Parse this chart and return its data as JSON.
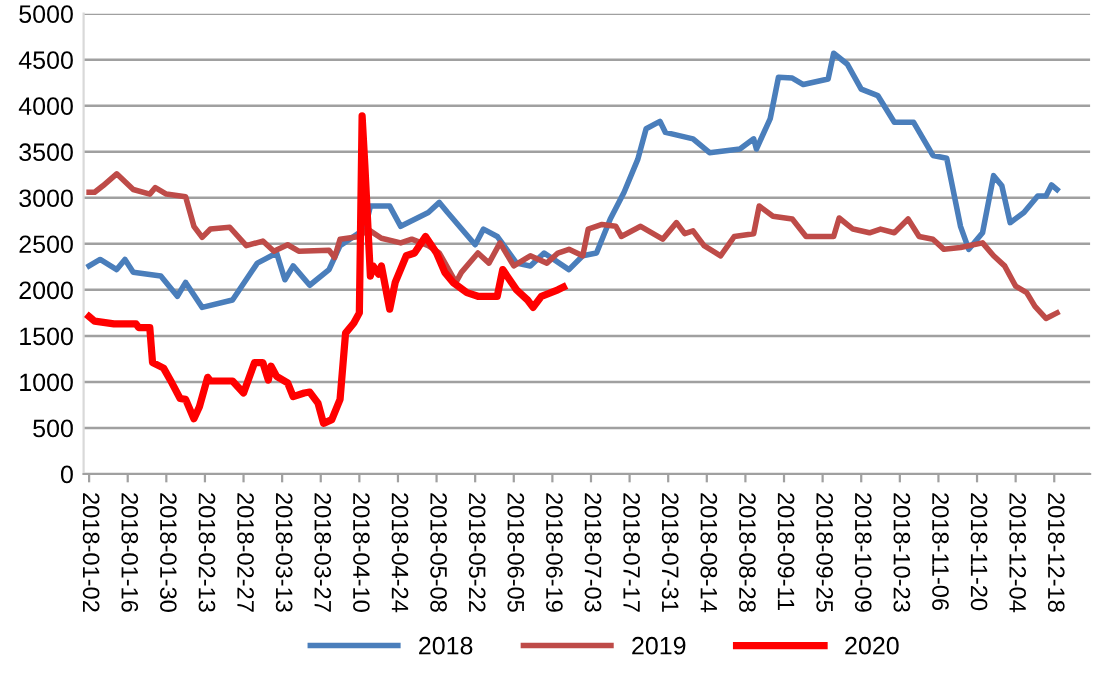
{
  "chart_data": {
    "type": "line",
    "xlim": [
      "2017-12-31",
      "2018-12-31"
    ],
    "ylim": [
      0,
      5000
    ],
    "yticks": [
      0,
      500,
      1000,
      1500,
      2000,
      2500,
      3000,
      3500,
      4000,
      4500,
      5000
    ],
    "xticks": [
      "2018-01-02",
      "2018-01-16",
      "2018-01-30",
      "2018-02-13",
      "2018-02-27",
      "2018-03-13",
      "2018-03-27",
      "2018-04-10",
      "2018-04-24",
      "2018-05-08",
      "2018-05-22",
      "2018-06-05",
      "2018-06-19",
      "2018-07-03",
      "2018-07-17",
      "2018-07-31",
      "2018-08-14",
      "2018-08-28",
      "2018-09-11",
      "2018-09-25",
      "2018-10-09",
      "2018-10-23",
      "2018-11-06",
      "2018-11-20",
      "2018-12-04",
      "2018-12-18"
    ],
    "grid": "y",
    "legend": "bottom",
    "marker": "none",
    "line_style": "solid",
    "series": [
      {
        "name": "2018",
        "color": "#4a7ebb",
        "x": [
          "2018-01-02",
          "2018-01-06",
          "2018-01-12",
          "2018-01-15",
          "2018-01-18",
          "2018-01-28",
          "2018-02-03",
          "2018-02-06",
          "2018-02-12",
          "2018-02-23",
          "2018-03-04",
          "2018-03-11",
          "2018-03-14",
          "2018-03-17",
          "2018-03-23",
          "2018-03-30",
          "2018-04-03",
          "2018-04-12",
          "2018-04-14",
          "2018-04-21",
          "2018-04-25",
          "2018-05-05",
          "2018-05-09",
          "2018-05-12",
          "2018-05-22",
          "2018-05-25",
          "2018-05-30",
          "2018-06-06",
          "2018-06-11",
          "2018-06-16",
          "2018-06-25",
          "2018-06-30",
          "2018-07-05",
          "2018-07-10",
          "2018-07-15",
          "2018-07-20",
          "2018-07-23",
          "2018-07-28",
          "2018-07-30",
          "2018-08-09",
          "2018-08-15",
          "2018-08-26",
          "2018-08-31",
          "2018-09-01",
          "2018-09-06",
          "2018-09-09",
          "2018-09-14",
          "2018-09-18",
          "2018-09-27",
          "2018-09-29",
          "2018-10-04",
          "2018-10-09",
          "2018-10-15",
          "2018-10-21",
          "2018-10-28",
          "2018-11-04",
          "2018-11-09",
          "2018-11-14",
          "2018-11-17",
          "2018-11-22",
          "2018-11-26",
          "2018-11-29",
          "2018-12-02",
          "2018-12-07",
          "2018-12-12",
          "2018-12-15",
          "2018-12-17",
          "2018-12-19"
        ],
        "values": [
          2260,
          2330,
          2220,
          2330,
          2190,
          2150,
          1930,
          2080,
          1810,
          1890,
          2290,
          2400,
          2110,
          2260,
          2050,
          2220,
          2480,
          2660,
          2910,
          2910,
          2690,
          2840,
          2950,
          2840,
          2490,
          2660,
          2580,
          2290,
          2260,
          2400,
          2220,
          2370,
          2400,
          2770,
          3060,
          3420,
          3750,
          3830,
          3710,
          3640,
          3490,
          3530,
          3640,
          3530,
          3860,
          4310,
          4300,
          4230,
          4290,
          4570,
          4450,
          4180,
          4110,
          3820,
          3820,
          3460,
          3430,
          2690,
          2440,
          2620,
          3240,
          3130,
          2730,
          2840,
          3020,
          3020,
          3140,
          3090
        ]
      },
      {
        "name": "2019",
        "color": "#be4b48",
        "x": [
          "2018-01-02",
          "2018-01-04",
          "2018-01-07",
          "2018-01-12",
          "2018-01-18",
          "2018-01-24",
          "2018-01-26",
          "2018-01-30",
          "2018-02-06",
          "2018-02-09",
          "2018-02-12",
          "2018-02-15",
          "2018-02-22",
          "2018-02-28",
          "2018-03-06",
          "2018-03-10",
          "2018-03-15",
          "2018-03-19",
          "2018-03-30",
          "2018-04-01",
          "2018-04-03",
          "2018-04-10",
          "2018-04-13",
          "2018-04-18",
          "2018-04-25",
          "2018-04-29",
          "2018-05-05",
          "2018-05-09",
          "2018-05-15",
          "2018-05-17",
          "2018-05-23",
          "2018-05-27",
          "2018-05-31",
          "2018-06-05",
          "2018-06-11",
          "2018-06-17",
          "2018-06-21",
          "2018-06-25",
          "2018-06-30",
          "2018-07-02",
          "2018-07-07",
          "2018-07-12",
          "2018-07-14",
          "2018-07-21",
          "2018-07-29",
          "2018-08-03",
          "2018-08-06",
          "2018-08-09",
          "2018-08-13",
          "2018-08-19",
          "2018-08-24",
          "2018-08-31",
          "2018-09-02",
          "2018-09-07",
          "2018-09-14",
          "2018-09-19",
          "2018-09-29",
          "2018-10-01",
          "2018-10-06",
          "2018-10-12",
          "2018-10-16",
          "2018-10-21",
          "2018-10-26",
          "2018-10-30",
          "2018-11-04",
          "2018-11-08",
          "2018-11-14",
          "2018-11-22",
          "2018-11-26",
          "2018-11-30",
          "2018-12-04",
          "2018-12-08",
          "2018-12-11",
          "2018-12-15",
          "2018-12-19"
        ],
        "values": [
          3060,
          3060,
          3130,
          3260,
          3090,
          3040,
          3110,
          3040,
          3010,
          2690,
          2570,
          2660,
          2680,
          2480,
          2530,
          2420,
          2490,
          2420,
          2430,
          2350,
          2550,
          2580,
          2660,
          2560,
          2510,
          2550,
          2480,
          2400,
          2080,
          2190,
          2400,
          2290,
          2510,
          2260,
          2370,
          2290,
          2400,
          2440,
          2370,
          2660,
          2710,
          2690,
          2580,
          2690,
          2550,
          2730,
          2610,
          2640,
          2480,
          2370,
          2580,
          2610,
          2910,
          2800,
          2770,
          2580,
          2580,
          2780,
          2660,
          2620,
          2660,
          2620,
          2770,
          2580,
          2550,
          2440,
          2460,
          2510,
          2370,
          2260,
          2040,
          1970,
          1820,
          1690,
          1750
        ]
      },
      {
        "name": "2020",
        "color": "#ff0000",
        "x": [
          "2018-01-02",
          "2018-01-04",
          "2018-01-11",
          "2018-01-19",
          "2018-01-20",
          "2018-01-24",
          "2018-01-25",
          "2018-01-29",
          "2018-02-01",
          "2018-02-04",
          "2018-02-06",
          "2018-02-09",
          "2018-02-11",
          "2018-02-14",
          "2018-02-15",
          "2018-02-23",
          "2018-02-27",
          "2018-03-03",
          "2018-03-06",
          "2018-03-08",
          "2018-03-09",
          "2018-03-11",
          "2018-03-15",
          "2018-03-17",
          "2018-03-21",
          "2018-03-23",
          "2018-03-26",
          "2018-03-28",
          "2018-03-31",
          "2018-04-03",
          "2018-04-05",
          "2018-04-08",
          "2018-04-10",
          "2018-04-11",
          "2018-04-12",
          "2018-04-14",
          "2018-04-15",
          "2018-04-17",
          "2018-04-18",
          "2018-04-21",
          "2018-04-23",
          "2018-04-27",
          "2018-04-30",
          "2018-05-04",
          "2018-05-08",
          "2018-05-11",
          "2018-05-14",
          "2018-05-19",
          "2018-05-23",
          "2018-05-30",
          "2018-06-01",
          "2018-06-06",
          "2018-06-10",
          "2018-06-12",
          "2018-06-15",
          "2018-06-21",
          "2018-06-23"
        ],
        "values": [
          1710,
          1660,
          1630,
          1630,
          1590,
          1590,
          1210,
          1150,
          990,
          820,
          810,
          600,
          730,
          1050,
          1010,
          1010,
          880,
          1210,
          1210,
          1020,
          1170,
          1060,
          990,
          840,
          880,
          890,
          770,
          550,
          590,
          810,
          1530,
          1640,
          1750,
          3890,
          3350,
          2150,
          2260,
          2170,
          2260,
          1790,
          2080,
          2370,
          2400,
          2580,
          2400,
          2190,
          2080,
          1970,
          1930,
          1930,
          2220,
          2000,
          1890,
          1810,
          1930,
          2000,
          2030
        ]
      }
    ]
  }
}
